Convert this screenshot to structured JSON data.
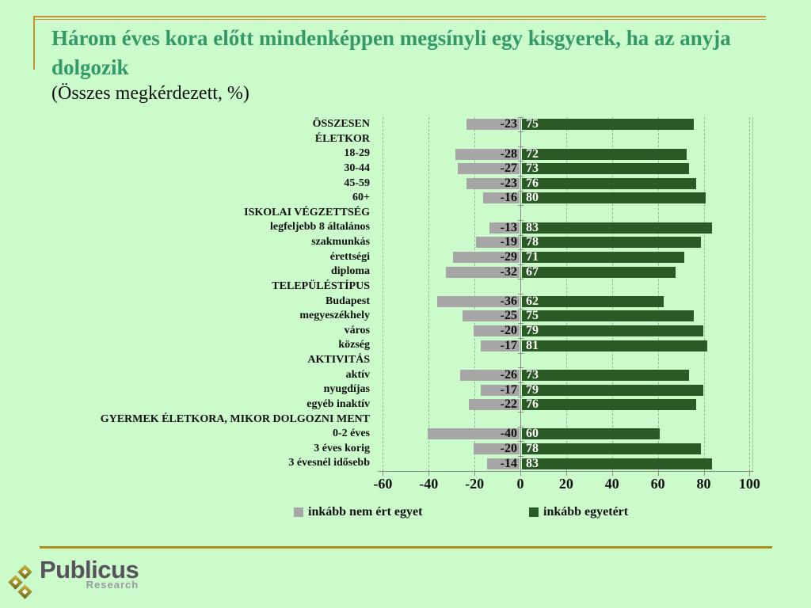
{
  "slide": {
    "title": "Három éves kora előtt mindenképpen megsínyli egy kisgyerek, ha az anyja dolgozik",
    "subtitle": "(Összes megkérdezett, %)"
  },
  "chart_data": {
    "type": "bar",
    "orientation": "horizontal-diverging",
    "title": "Három éves kora előtt mindenképpen megsínyli egy kisgyerek, ha az anyja dolgozik",
    "subtitle": "(Összes megkérdezett, %)",
    "categories": [
      "ÖSSZESEN",
      "ÉLETKOR",
      "18-29",
      "30-44",
      "45-59",
      "60+",
      "ISKOLAI VÉGZETTSÉG",
      "legfeljebb 8 általános",
      "szakmunkás",
      "érettségi",
      "diploma",
      "TELEPÜLÉSTÍPUS",
      "Budapest",
      "megyeszékhely",
      "város",
      "község",
      "AKTIVITÁS",
      "aktív",
      "nyugdíjas",
      "egyéb inaktív",
      "GYERMEK ÉLETKORA, MIKOR DOLGOZNI MENT",
      "0-2 éves",
      "3 éves korig",
      "3 évesnél idősebb"
    ],
    "series": [
      {
        "name": "inkább nem ért egyet",
        "color": "#a6a6a6",
        "values": [
          -23,
          null,
          -28,
          -27,
          -23,
          -16,
          null,
          -13,
          -19,
          -29,
          -32,
          null,
          -36,
          -25,
          -20,
          -17,
          null,
          -26,
          -17,
          -22,
          null,
          -40,
          -20,
          -14
        ]
      },
      {
        "name": "inkább egyetért",
        "color": "#2c5a26",
        "values": [
          75,
          null,
          72,
          73,
          76,
          80,
          null,
          83,
          78,
          71,
          67,
          null,
          62,
          75,
          79,
          81,
          null,
          73,
          79,
          76,
          null,
          60,
          78,
          83
        ]
      }
    ],
    "xlim": [
      -60,
      100
    ],
    "x_ticks": [
      -60,
      -40,
      -20,
      0,
      20,
      40,
      60,
      80,
      100
    ],
    "grid": "dashed-vertical",
    "legend_position": "bottom"
  },
  "legend": {
    "items": [
      {
        "label": "inkább nem ért egyet",
        "color": "#a6a6a6"
      },
      {
        "label": "inkább egyetért",
        "color": "#2c5a26"
      }
    ]
  },
  "logo": {
    "name": "Publicus",
    "sub": "Research"
  },
  "icons": [
    "publicus-diamonds-icon",
    "legend-swatch-gray",
    "legend-swatch-green"
  ],
  "colors": {
    "background": "#cbfacb",
    "title_green": "#339966",
    "accent_orange": "#c8912d",
    "footer_gold": "#b19110",
    "bar_gray": "#a6a6a6",
    "bar_green": "#2c5a26",
    "axis_gray": "#8c8c8c",
    "value_label_negative": "#111111",
    "value_label_positive": "#ffffff"
  }
}
